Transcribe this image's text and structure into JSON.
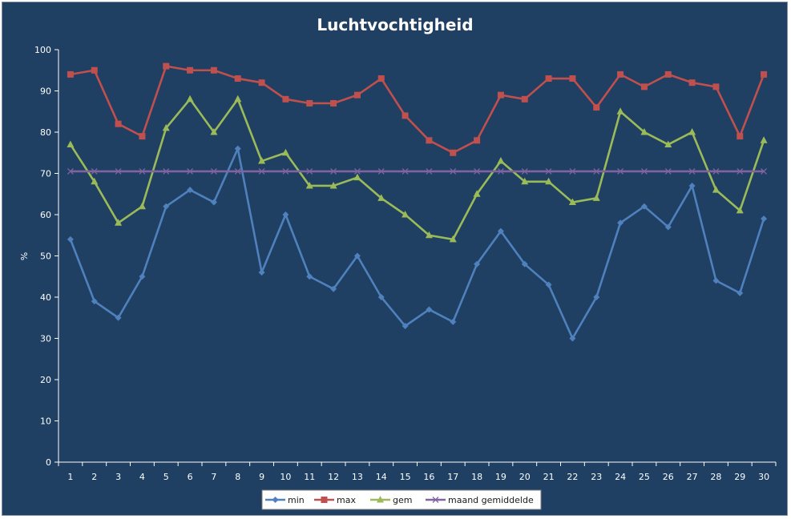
{
  "chart_data": {
    "type": "line",
    "title": "Luchtvochtigheid",
    "xlabel": "",
    "ylabel": "%",
    "ylim": [
      0,
      100
    ],
    "yticks": [
      0,
      10,
      20,
      30,
      40,
      50,
      60,
      70,
      80,
      90,
      100
    ],
    "categories": [
      "1",
      "2",
      "3",
      "4",
      "5",
      "6",
      "7",
      "8",
      "9",
      "10",
      "11",
      "12",
      "13",
      "14",
      "15",
      "16",
      "17",
      "18",
      "19",
      "20",
      "21",
      "22",
      "23",
      "24",
      "25",
      "26",
      "27",
      "28",
      "29",
      "30"
    ],
    "grid": false,
    "legend_position": "bottom",
    "series": [
      {
        "name": "min",
        "color": "#4f81bd",
        "marker": "diamond",
        "values": [
          54,
          39,
          35,
          45,
          62,
          66,
          63,
          76,
          46,
          60,
          45,
          42,
          50,
          40,
          33,
          37,
          34,
          48,
          56,
          48,
          43,
          30,
          40,
          58,
          62,
          57,
          67,
          44,
          41,
          59
        ]
      },
      {
        "name": "max",
        "color": "#c0504d",
        "marker": "square",
        "values": [
          94,
          95,
          82,
          79,
          96,
          95,
          95,
          93,
          92,
          88,
          87,
          87,
          89,
          93,
          84,
          78,
          75,
          78,
          89,
          88,
          93,
          93,
          86,
          94,
          91,
          94,
          92,
          91,
          79,
          94
        ]
      },
      {
        "name": "gem",
        "color": "#9bbb59",
        "marker": "triangle",
        "values": [
          77,
          68,
          58,
          62,
          81,
          88,
          80,
          88,
          73,
          75,
          67,
          67,
          69,
          64,
          60,
          55,
          54,
          65,
          73,
          68,
          68,
          63,
          64,
          85,
          80,
          77,
          80,
          66,
          61,
          78
        ]
      },
      {
        "name": "maand gemiddelde",
        "color": "#8064a2",
        "marker": "x",
        "values": [
          70.5,
          70.5,
          70.5,
          70.5,
          70.5,
          70.5,
          70.5,
          70.5,
          70.5,
          70.5,
          70.5,
          70.5,
          70.5,
          70.5,
          70.5,
          70.5,
          70.5,
          70.5,
          70.5,
          70.5,
          70.5,
          70.5,
          70.5,
          70.5,
          70.5,
          70.5,
          70.5,
          70.5,
          70.5,
          70.5
        ]
      }
    ]
  }
}
